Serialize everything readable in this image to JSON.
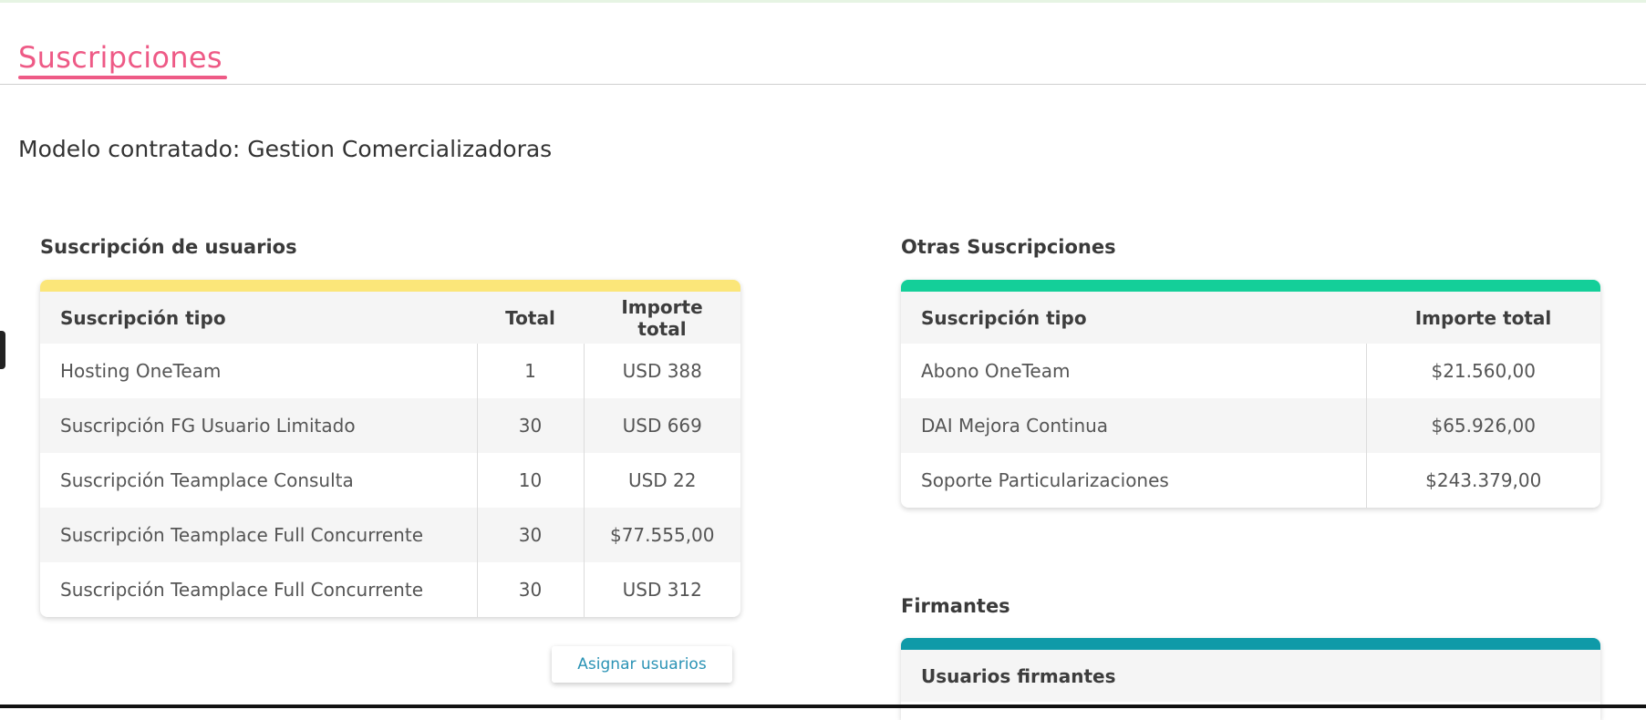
{
  "header": {
    "title": "Suscripciones"
  },
  "model": {
    "text": "Modelo contratado: Gestion Comercializadoras"
  },
  "users_section": {
    "title": "Suscripción de usuarios",
    "accent": "#fbe679",
    "columns": [
      "Suscripción tipo",
      "Total",
      "Importe total"
    ],
    "rows": [
      {
        "tipo": "Hosting OneTeam",
        "total": "1",
        "importe": "USD 388"
      },
      {
        "tipo": "Suscripción FG Usuario Limitado",
        "total": "30",
        "importe": "USD 669"
      },
      {
        "tipo": "Suscripción Teamplace Consulta",
        "total": "10",
        "importe": "USD 22"
      },
      {
        "tipo": "Suscripción Teamplace Full Concurrente",
        "total": "30",
        "importe": "$77.555,00"
      },
      {
        "tipo": "Suscripción Teamplace Full Concurrente",
        "total": "30",
        "importe": "USD 312"
      }
    ],
    "assign_button": "Asignar usuarios"
  },
  "other_section": {
    "title": "Otras Suscripciones",
    "accent": "#14cf99",
    "columns": [
      "Suscripción tipo",
      "Importe total"
    ],
    "rows": [
      {
        "tipo": "Abono OneTeam",
        "importe": "$21.560,00"
      },
      {
        "tipo": "DAI Mejora Continua",
        "importe": "$65.926,00"
      },
      {
        "tipo": "Soporte Particularizaciones",
        "importe": "$243.379,00"
      }
    ]
  },
  "signers_section": {
    "title": "Firmantes",
    "accent": "#0f9aa8",
    "column": "Usuarios firmantes"
  }
}
